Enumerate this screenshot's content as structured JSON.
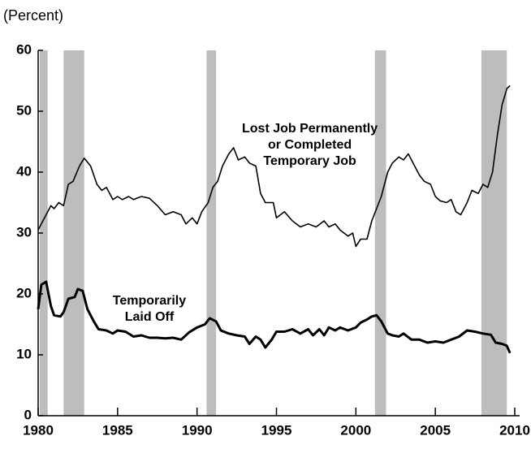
{
  "chart_data": {
    "type": "line",
    "y_label": "(Percent)",
    "annotations": [
      {
        "lines": [
          "Lost Job Permanently",
          "or Completed",
          "Temporary Job"
        ],
        "x": 1997.1,
        "y": 47.1
      },
      {
        "lines": [
          "Temporarily",
          "Laid Off"
        ],
        "x": 1987.0,
        "y": 18.8
      }
    ],
    "xlim": [
      1980,
      2010
    ],
    "xticks": [
      1980,
      1985,
      1990,
      1995,
      2000,
      2005,
      2010
    ],
    "ylim": [
      0,
      60
    ],
    "yticks": [
      0,
      10,
      20,
      30,
      40,
      50,
      60
    ],
    "grid": false,
    "shaded_color": "#bdbdbd",
    "shaded_periods": [
      [
        1980.1,
        1980.6
      ],
      [
        1981.6,
        1982.9
      ],
      [
        1990.6,
        1991.2
      ],
      [
        2001.2,
        2001.9
      ],
      [
        2007.9,
        2009.5
      ]
    ],
    "series": [
      {
        "name": "Lost Job Permanently or Completed Temporary Job",
        "color": "#000000",
        "line_width": 1.6,
        "x": [
          1980.0,
          1980.5,
          1980.8,
          1981.0,
          1981.3,
          1981.6,
          1981.9,
          1982.2,
          1982.6,
          1982.9,
          1983.3,
          1983.7,
          1984.0,
          1984.3,
          1984.7,
          1985.0,
          1985.3,
          1985.7,
          1986.0,
          1986.5,
          1987.0,
          1987.5,
          1988.0,
          1988.5,
          1989.0,
          1989.3,
          1989.7,
          1990.0,
          1990.3,
          1990.7,
          1991.0,
          1991.3,
          1991.6,
          1992.0,
          1992.3,
          1992.6,
          1993.0,
          1993.3,
          1993.7,
          1994.0,
          1994.3,
          1994.8,
          1995.0,
          1995.5,
          1996.0,
          1996.5,
          1997.0,
          1997.5,
          1998.0,
          1998.3,
          1998.7,
          1999.0,
          1999.5,
          1999.8,
          2000.0,
          2000.3,
          2000.7,
          2001.0,
          2001.3,
          2001.6,
          2002.0,
          2002.3,
          2002.7,
          2003.0,
          2003.3,
          2003.7,
          2004.0,
          2004.3,
          2004.7,
          2005.0,
          2005.3,
          2005.7,
          2006.0,
          2006.3,
          2006.6,
          2007.0,
          2007.3,
          2007.7,
          2008.0,
          2008.3,
          2008.6,
          2008.9,
          2009.2,
          2009.5,
          2009.7
        ],
        "values": [
          30.5,
          33,
          34.5,
          34,
          35,
          34.5,
          38,
          38.5,
          41,
          42.3,
          41,
          38,
          37,
          37.5,
          35.5,
          36,
          35.5,
          36,
          35.5,
          36,
          35.7,
          34.5,
          33,
          33.5,
          33,
          31.5,
          32.5,
          31.5,
          33.5,
          35,
          37.5,
          38.5,
          41,
          43,
          44,
          42,
          42.5,
          41.5,
          41,
          36.5,
          35,
          35,
          32.5,
          33.5,
          32,
          31,
          31.5,
          31,
          32,
          31,
          31.5,
          30.5,
          29.5,
          30,
          27.8,
          29,
          29,
          32,
          34,
          36,
          40,
          41.5,
          42.5,
          42,
          43,
          41,
          39.5,
          38.5,
          38,
          36,
          35.3,
          35,
          35.5,
          33.5,
          33,
          35,
          37,
          36.5,
          38,
          37.5,
          40,
          46,
          51,
          53.7,
          54.2
        ]
      },
      {
        "name": "Temporarily Laid Off",
        "color": "#000000",
        "line_width": 3,
        "x": [
          1980.0,
          1980.2,
          1980.5,
          1980.8,
          1981.0,
          1981.4,
          1981.6,
          1981.9,
          1982.3,
          1982.5,
          1982.8,
          1983.1,
          1983.5,
          1983.8,
          1984.3,
          1984.7,
          1985.0,
          1985.5,
          1986.0,
          1986.5,
          1987.0,
          1987.5,
          1988.0,
          1988.5,
          1989.0,
          1989.5,
          1990.0,
          1990.5,
          1990.8,
          1991.2,
          1991.5,
          1992.0,
          1992.5,
          1993.0,
          1993.3,
          1993.7,
          1994.0,
          1994.3,
          1994.7,
          1995.0,
          1995.5,
          1996.0,
          1996.5,
          1997.0,
          1997.3,
          1997.7,
          1998.0,
          1998.3,
          1998.7,
          1999.0,
          1999.5,
          2000.0,
          2000.3,
          2000.7,
          2001.0,
          2001.3,
          2001.6,
          2002.0,
          2002.3,
          2002.7,
          2003.0,
          2003.5,
          2004.0,
          2004.5,
          2005.0,
          2005.5,
          2006.0,
          2006.5,
          2007.0,
          2007.5,
          2008.0,
          2008.5,
          2008.8,
          2009.2,
          2009.5,
          2009.7
        ],
        "values": [
          17.5,
          21.5,
          22,
          18,
          16.5,
          16.3,
          17,
          19.2,
          19.5,
          20.8,
          20.5,
          17.5,
          15.5,
          14.2,
          14,
          13.5,
          14,
          13.8,
          13,
          13.2,
          12.8,
          12.8,
          12.7,
          12.8,
          12.5,
          13.7,
          14.5,
          15,
          16,
          15.5,
          14,
          13.5,
          13.2,
          13,
          11.8,
          13,
          12.5,
          11.2,
          12.5,
          13.8,
          13.8,
          14.2,
          13.5,
          14.2,
          13.2,
          14.2,
          13.2,
          14.5,
          14,
          14.5,
          14,
          14.5,
          15.3,
          15.8,
          16.3,
          16.5,
          15.5,
          13.5,
          13.2,
          13,
          13.5,
          12.5,
          12.5,
          12,
          12.2,
          12,
          12.5,
          13,
          14,
          13.8,
          13.5,
          13.3,
          12,
          11.8,
          11.5,
          10.3
        ]
      }
    ]
  }
}
